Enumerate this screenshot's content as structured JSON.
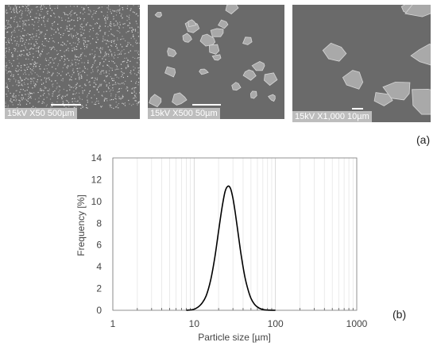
{
  "sem_images": [
    {
      "caption": "15kV X50 500µm"
    },
    {
      "caption": "15kV X500 50µm"
    },
    {
      "caption": "15kV X1,000 10µm"
    }
  ],
  "panel_labels": {
    "a": "(a)",
    "b": "(b)"
  },
  "chart_data": {
    "type": "line",
    "xscale": "log",
    "xlim": [
      1,
      1000
    ],
    "ylim": [
      0,
      14
    ],
    "xticks": [
      1,
      10,
      100,
      1000
    ],
    "yticks": [
      0,
      2,
      4,
      6,
      8,
      10,
      12,
      14
    ],
    "xlabel": "Particle size [µm]",
    "ylabel": "Frequency [%]",
    "grid": "vertical-minor",
    "legend": "none",
    "line_color": "#000000",
    "series": [
      {
        "x": [
          8,
          10,
          12,
          14,
          16,
          18,
          20,
          22,
          24,
          26,
          28,
          30,
          32,
          35,
          38,
          42,
          46,
          50,
          56,
          63,
          72,
          85,
          100
        ],
        "y": [
          0.0,
          0.1,
          0.5,
          1.3,
          2.8,
          4.9,
          7.3,
          9.4,
          10.9,
          11.4,
          11.2,
          10.3,
          9.0,
          6.9,
          5.0,
          3.1,
          1.9,
          1.1,
          0.5,
          0.2,
          0.05,
          0.01,
          0.0
        ]
      }
    ]
  }
}
